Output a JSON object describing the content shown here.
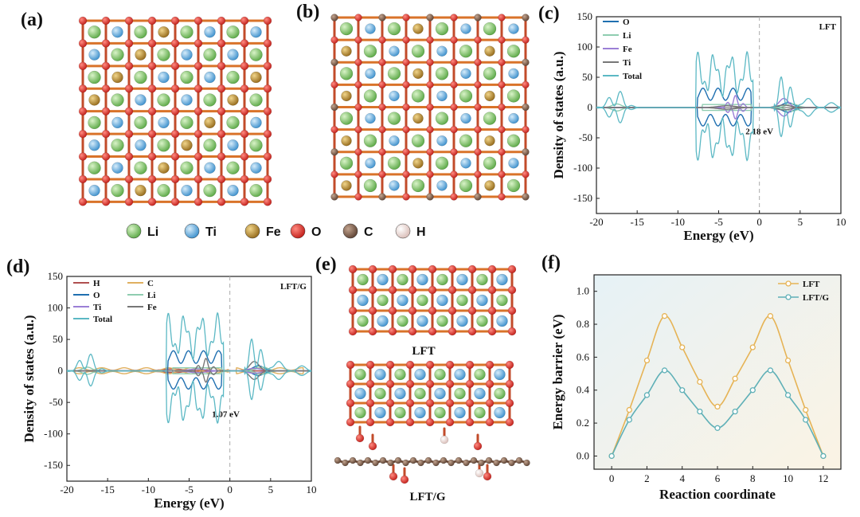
{
  "panels": {
    "a": {
      "label": "(a)"
    },
    "b": {
      "label": "(b)"
    },
    "c": {
      "label": "(c)"
    },
    "d": {
      "label": "(d)"
    },
    "e": {
      "label": "(e)",
      "top_label": "LFT",
      "bottom_label": "LFT/G"
    },
    "f": {
      "label": "(f)"
    }
  },
  "atom_legend": [
    {
      "label": "Li",
      "color": "#6fbe5a"
    },
    {
      "label": "Ti",
      "color": "#5aa8de"
    },
    {
      "label": "Fe",
      "color": "#b5892a"
    },
    {
      "label": "O",
      "color": "#d6302a"
    },
    {
      "label": "C",
      "color": "#7a5a48"
    },
    {
      "label": "H",
      "color": "#ecd9d4"
    }
  ],
  "chart_data": [
    {
      "id": "c",
      "type": "line",
      "xlabel": "Energy (eV)",
      "ylabel": "Density of states (a.u.)",
      "xlim": [
        -20,
        10
      ],
      "ylim": [
        -175,
        150
      ],
      "xticks": [
        -20,
        -15,
        -10,
        -5,
        0,
        5,
        10
      ],
      "yticks": [
        -150,
        -100,
        -50,
        0,
        50,
        100,
        150
      ],
      "corner_label": "LFT",
      "annotation": "2.18 eV",
      "fermi_line": 0,
      "series": [
        {
          "name": "O",
          "color": "#1f6fb0"
        },
        {
          "name": "Li",
          "color": "#8fcdb0"
        },
        {
          "name": "Fe",
          "color": "#9b7fd6"
        },
        {
          "name": "Ti",
          "color": "#777777"
        },
        {
          "name": "Total",
          "color": "#5bb8c4"
        }
      ]
    },
    {
      "id": "d",
      "type": "line",
      "xlabel": "Energy (eV)",
      "ylabel": "Density of states (a.u.)",
      "xlim": [
        -20,
        10
      ],
      "ylim": [
        -175,
        150
      ],
      "xticks": [
        -20,
        -15,
        -10,
        -5,
        0,
        5,
        10
      ],
      "yticks": [
        -150,
        -100,
        -50,
        0,
        50,
        100,
        150
      ],
      "corner_label": "LFT/G",
      "annotation": "1.07 eV",
      "fermi_line": 0,
      "series": [
        {
          "name": "H",
          "color": "#b05050"
        },
        {
          "name": "C",
          "color": "#e0b060"
        },
        {
          "name": "O",
          "color": "#1f6fb0"
        },
        {
          "name": "Li",
          "color": "#8fcdb0"
        },
        {
          "name": "Ti",
          "color": "#9b7fd6"
        },
        {
          "name": "Fe",
          "color": "#777777"
        },
        {
          "name": "Total",
          "color": "#5bb8c4"
        }
      ]
    },
    {
      "id": "f",
      "type": "line",
      "xlabel": "Reaction coordinate",
      "ylabel": "Energy barrier (eV)",
      "xlim": [
        -1,
        13
      ],
      "ylim": [
        -0.08,
        1.1
      ],
      "xticks": [
        0,
        2,
        4,
        6,
        8,
        10,
        12
      ],
      "yticks": [
        0.0,
        0.2,
        0.4,
        0.6,
        0.8,
        1.0
      ],
      "ytick_labels": [
        "0.0",
        "0.2",
        "0.4",
        "0.6",
        "0.8",
        "1.0"
      ],
      "x": [
        0,
        1,
        2,
        3,
        4,
        5,
        6,
        7,
        8,
        9,
        10,
        11,
        12
      ],
      "series": [
        {
          "name": "LFT",
          "color": "#e6b355",
          "values": [
            0.0,
            0.28,
            0.58,
            0.85,
            0.66,
            0.45,
            0.3,
            0.47,
            0.66,
            0.85,
            0.58,
            0.28,
            0.0
          ]
        },
        {
          "name": "LFT/G",
          "color": "#5fb0b7",
          "values": [
            0.0,
            0.22,
            0.37,
            0.52,
            0.4,
            0.27,
            0.17,
            0.27,
            0.4,
            0.52,
            0.37,
            0.22,
            0.0
          ]
        }
      ]
    }
  ]
}
